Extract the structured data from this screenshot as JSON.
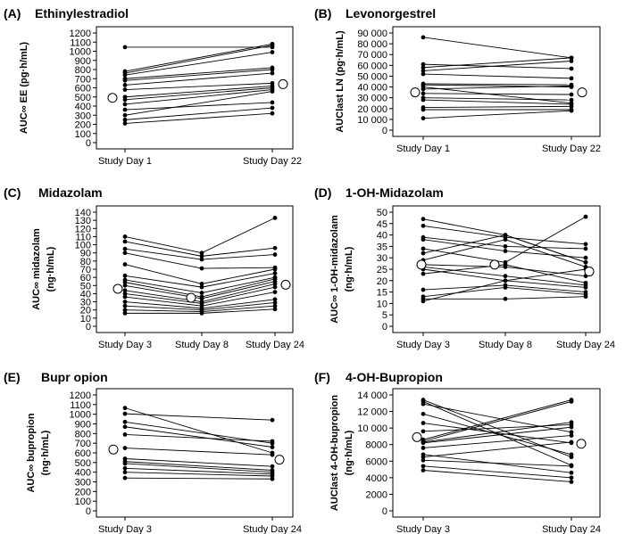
{
  "figure": {
    "panels": [
      {
        "id": "A",
        "label": "(A)",
        "title": "Ethinylestradiol",
        "ylabel_lines": [
          "AUC∞ EE (pg·h/mL)"
        ],
        "ylim": [
          0,
          1200
        ],
        "yticks": [
          0,
          100,
          200,
          300,
          400,
          500,
          600,
          700,
          800,
          900,
          1000,
          1100,
          1200
        ],
        "ytick_labels": [
          "0",
          "100",
          "200",
          "300",
          "400",
          "500",
          "600",
          "700",
          "800",
          "900",
          "1000",
          "1100",
          "1200"
        ],
        "categories": [
          "Study Day 1",
          "Study Day 22"
        ],
        "subjects": [
          [
            1045,
            1045
          ],
          [
            780,
            1080
          ],
          [
            760,
            1065
          ],
          [
            740,
            990
          ],
          [
            700,
            820
          ],
          [
            680,
            800
          ],
          [
            630,
            760
          ],
          [
            580,
            650
          ],
          [
            500,
            620
          ],
          [
            470,
            600
          ],
          [
            420,
            580
          ],
          [
            360,
            440
          ],
          [
            300,
            560
          ],
          [
            250,
            380
          ],
          [
            210,
            320
          ]
        ],
        "means": [
          490,
          640
        ]
      },
      {
        "id": "B",
        "label": "(B)",
        "title": "Levonorgestrel",
        "ylabel_lines": [
          "AUClast LN (pg·h/mL)"
        ],
        "ylim": [
          0,
          90000
        ],
        "yticks": [
          0,
          10000,
          20000,
          30000,
          40000,
          50000,
          60000,
          70000,
          80000,
          90000
        ],
        "ytick_labels": [
          "0",
          "10 000",
          "20 000",
          "30 000",
          "40 000",
          "50 000",
          "60 000",
          "70 000",
          "80 000",
          "90 000"
        ],
        "categories": [
          "Study Day 1",
          "Study Day 22"
        ],
        "subjects": [
          [
            86000,
            67000
          ],
          [
            61000,
            57000
          ],
          [
            58000,
            67000
          ],
          [
            55000,
            64000
          ],
          [
            52000,
            48000
          ],
          [
            43000,
            42000
          ],
          [
            42000,
            40000
          ],
          [
            40000,
            25000
          ],
          [
            38000,
            41000
          ],
          [
            34000,
            33000
          ],
          [
            30000,
            28000
          ],
          [
            28000,
            24000
          ],
          [
            21000,
            22000
          ],
          [
            19000,
            19000
          ],
          [
            11000,
            18000
          ]
        ],
        "means": [
          35000,
          35000
        ]
      },
      {
        "id": "C",
        "label": "(C)",
        "title": "Midazolam",
        "ylabel_lines": [
          "AUC∞ midazolam",
          "(ng·h/mL)"
        ],
        "ylim": [
          0,
          140
        ],
        "yticks": [
          0,
          10,
          20,
          30,
          40,
          50,
          60,
          70,
          80,
          90,
          100,
          110,
          120,
          130,
          140
        ],
        "ytick_labels": [
          "0",
          "10",
          "20",
          "30",
          "40",
          "50",
          "60",
          "70",
          "80",
          "90",
          "100",
          "110",
          "120",
          "130",
          "140"
        ],
        "categories": [
          "Study Day 3",
          "Study Day 8",
          "Study Day 24"
        ],
        "subjects": [
          [
            110,
            90,
            133
          ],
          [
            104,
            86,
            96
          ],
          [
            95,
            82,
            88
          ],
          [
            90,
            71,
            72
          ],
          [
            76,
            52,
            70
          ],
          [
            62,
            48,
            65
          ],
          [
            57,
            41,
            60
          ],
          [
            54,
            36,
            58
          ],
          [
            50,
            34,
            55
          ],
          [
            44,
            30,
            52
          ],
          [
            40,
            28,
            48
          ],
          [
            36,
            25,
            42
          ],
          [
            30,
            22,
            33
          ],
          [
            25,
            20,
            29
          ],
          [
            20,
            18,
            25
          ],
          [
            16,
            16,
            21
          ]
        ],
        "means": [
          46,
          35,
          51
        ]
      },
      {
        "id": "D",
        "label": "(D)",
        "title": "1-OH-Midazolam",
        "ylabel_lines": [
          "AUC∞ 1-OH-midazolam",
          "(ng·h/mL)"
        ],
        "ylim": [
          0,
          50
        ],
        "yticks": [
          0,
          5,
          10,
          15,
          20,
          25,
          30,
          35,
          40,
          45,
          50
        ],
        "ytick_labels": [
          "0",
          "5",
          "10",
          "15",
          "20",
          "25",
          "30",
          "35",
          "40",
          "45",
          "50"
        ],
        "categories": [
          "Study Day 3",
          "Study Day 8",
          "Study Day 24"
        ],
        "subjects": [
          [
            47,
            40,
            28
          ],
          [
            44,
            39,
            36
          ],
          [
            39,
            35,
            34
          ],
          [
            38,
            33,
            30
          ],
          [
            34,
            28,
            48
          ],
          [
            32,
            40,
            28
          ],
          [
            29,
            38,
            26
          ],
          [
            27,
            26,
            22
          ],
          [
            26,
            22,
            18
          ],
          [
            25,
            20,
            17
          ],
          [
            23,
            27,
            19
          ],
          [
            16,
            18,
            15
          ],
          [
            13,
            17,
            14
          ],
          [
            12,
            12,
            13
          ],
          [
            11,
            20,
            25
          ]
        ],
        "means": [
          27,
          27,
          24
        ]
      },
      {
        "id": "E",
        "label": "(E)",
        "title": "Bupr opion",
        "ylabel_lines": [
          "AUC∞ bupropion",
          "(ng·h/mL)"
        ],
        "ylim": [
          0,
          1200
        ],
        "yticks": [
          0,
          100,
          200,
          300,
          400,
          500,
          600,
          700,
          800,
          900,
          1000,
          1100,
          1200
        ],
        "ytick_labels": [
          "0",
          "100",
          "200",
          "300",
          "400",
          "500",
          "600",
          "700",
          "800",
          "900",
          "1000",
          "1100",
          "1200"
        ],
        "categories": [
          "Study Day 3",
          "Study Day 24"
        ],
        "subjects": [
          [
            1065,
            600
          ],
          [
            1005,
            940
          ],
          [
            920,
            700
          ],
          [
            870,
            660
          ],
          [
            790,
            720
          ],
          [
            650,
            580
          ],
          [
            540,
            460
          ],
          [
            510,
            420
          ],
          [
            490,
            400
          ],
          [
            440,
            380
          ],
          [
            400,
            360
          ],
          [
            340,
            330
          ]
        ],
        "means": [
          635,
          530
        ]
      },
      {
        "id": "F",
        "label": "(F)",
        "title": "4-OH-Bupropion",
        "ylabel_lines": [
          "AUClast 4-OH-bupropion",
          "(ng·h/mL)"
        ],
        "ylim": [
          0,
          14000
        ],
        "yticks": [
          0,
          2000,
          4000,
          6000,
          8000,
          10000,
          12000,
          14000
        ],
        "ytick_labels": [
          "0",
          "2000",
          "4000",
          "6000",
          "8000",
          "10 000",
          "12 000",
          "14 000"
        ],
        "categories": [
          "Study Day 3",
          "Study Day 24"
        ],
        "subjects": [
          [
            13400,
            6500
          ],
          [
            13200,
            5500
          ],
          [
            12900,
            9500
          ],
          [
            11700,
            6800
          ],
          [
            10600,
            8200
          ],
          [
            9600,
            10400
          ],
          [
            8600,
            13400
          ],
          [
            8400,
            13200
          ],
          [
            8300,
            10700
          ],
          [
            8200,
            10100
          ],
          [
            7600,
            9100
          ],
          [
            6800,
            4600
          ],
          [
            6500,
            8300
          ],
          [
            6100,
            5400
          ],
          [
            5400,
            4000
          ],
          [
            4900,
            3500
          ]
        ],
        "means": [
          8900,
          8100
        ]
      }
    ]
  },
  "chart_data": [
    {
      "type": "line",
      "title": "Ethinylestradiol",
      "ylabel": "AUC∞ EE (pg·h/mL)",
      "categories": [
        "Study Day 1",
        "Study Day 22"
      ],
      "ylim": [
        0,
        1200
      ],
      "series": [
        {
          "name": "individual subjects",
          "values": "see figure.panels[0].subjects"
        },
        {
          "name": "mean",
          "values": [
            490,
            640
          ]
        }
      ]
    },
    {
      "type": "line",
      "title": "Levonorgestrel",
      "ylabel": "AUClast LN (pg·h/mL)",
      "categories": [
        "Study Day 1",
        "Study Day 22"
      ],
      "ylim": [
        0,
        90000
      ],
      "series": [
        {
          "name": "individual subjects",
          "values": "see figure.panels[1].subjects"
        },
        {
          "name": "mean",
          "values": [
            35000,
            35000
          ]
        }
      ]
    },
    {
      "type": "line",
      "title": "Midazolam",
      "ylabel": "AUC∞ midazolam (ng·h/mL)",
      "categories": [
        "Study Day 3",
        "Study Day 8",
        "Study Day 24"
      ],
      "ylim": [
        0,
        140
      ],
      "series": [
        {
          "name": "individual subjects",
          "values": "see figure.panels[2].subjects"
        },
        {
          "name": "mean",
          "values": [
            46,
            35,
            51
          ]
        }
      ]
    },
    {
      "type": "line",
      "title": "1-OH-Midazolam",
      "ylabel": "AUC∞ 1-OH-midazolam (ng·h/mL)",
      "categories": [
        "Study Day 3",
        "Study Day 8",
        "Study Day 24"
      ],
      "ylim": [
        0,
        50
      ],
      "series": [
        {
          "name": "individual subjects",
          "values": "see figure.panels[3].subjects"
        },
        {
          "name": "mean",
          "values": [
            27,
            27,
            24
          ]
        }
      ]
    },
    {
      "type": "line",
      "title": "Bupr opion",
      "ylabel": "AUC∞ bupropion (ng·h/mL)",
      "categories": [
        "Study Day 3",
        "Study Day 24"
      ],
      "ylim": [
        0,
        1200
      ],
      "series": [
        {
          "name": "individual subjects",
          "values": "see figure.panels[4].subjects"
        },
        {
          "name": "mean",
          "values": [
            635,
            530
          ]
        }
      ]
    },
    {
      "type": "line",
      "title": "4-OH-Bupropion",
      "ylabel": "AUClast 4-OH-bupropion (ng·h/mL)",
      "categories": [
        "Study Day 3",
        "Study Day 24"
      ],
      "ylim": [
        0,
        14000
      ],
      "series": [
        {
          "name": "individual subjects",
          "values": "see figure.panels[5].subjects"
        },
        {
          "name": "mean",
          "values": [
            8900,
            8100
          ]
        }
      ]
    }
  ]
}
